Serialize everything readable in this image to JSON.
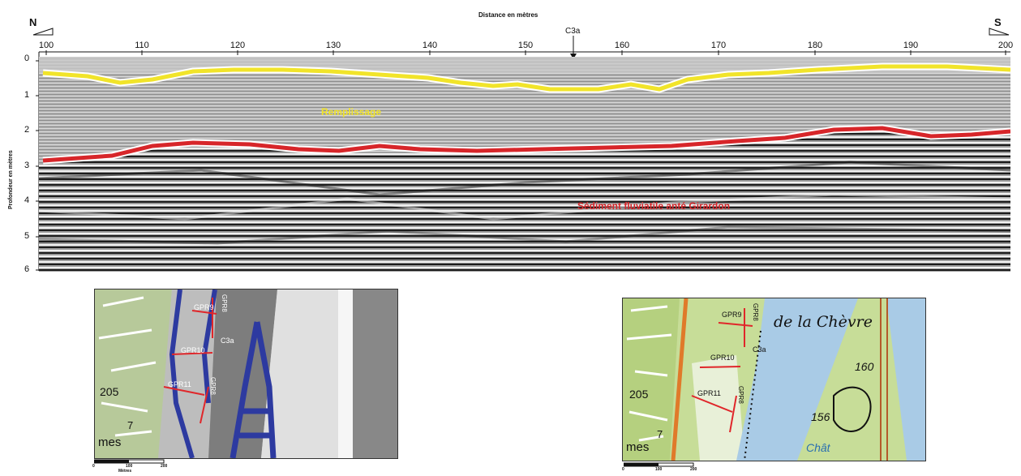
{
  "profile": {
    "direction_left": "N",
    "direction_right": "S",
    "x_title": "Distance en mètres",
    "y_title": "Profondeur en mètres",
    "marker": "C3a",
    "x_ticks": [
      "100",
      "110",
      "120",
      "130",
      "140",
      "150",
      "160",
      "170",
      "180",
      "190",
      "200"
    ],
    "y_ticks": [
      "0",
      "1",
      "2",
      "3",
      "4",
      "5",
      "6"
    ],
    "layer_top_label": "Remplissage",
    "layer_bottom_label": "Sédiment fluviatile anté Girardon",
    "colors": {
      "top_interface": "#f1e42a",
      "bottom_interface": "#d7262a",
      "radargram": "#a9a9a9"
    }
  },
  "map_lidar": {
    "labels": [
      "GPR9",
      "GPR8",
      "C3a",
      "GPR10",
      "GPR11",
      "GPR8"
    ],
    "map_text": [
      "205",
      "mes",
      "7"
    ],
    "scale_ticks": [
      "0",
      "100",
      "200"
    ],
    "scale_unit": "Mètres"
  },
  "map_topo": {
    "labels": [
      "GPR9",
      "GPR8",
      "C3a",
      "GPR10",
      "GPR11",
      "GPR8"
    ],
    "place_name": "de la Chèvre",
    "map_text": [
      "160",
      "156",
      "205",
      "mes",
      "Chât",
      "7"
    ],
    "scale_ticks": [
      "0",
      "100",
      "200"
    ]
  }
}
